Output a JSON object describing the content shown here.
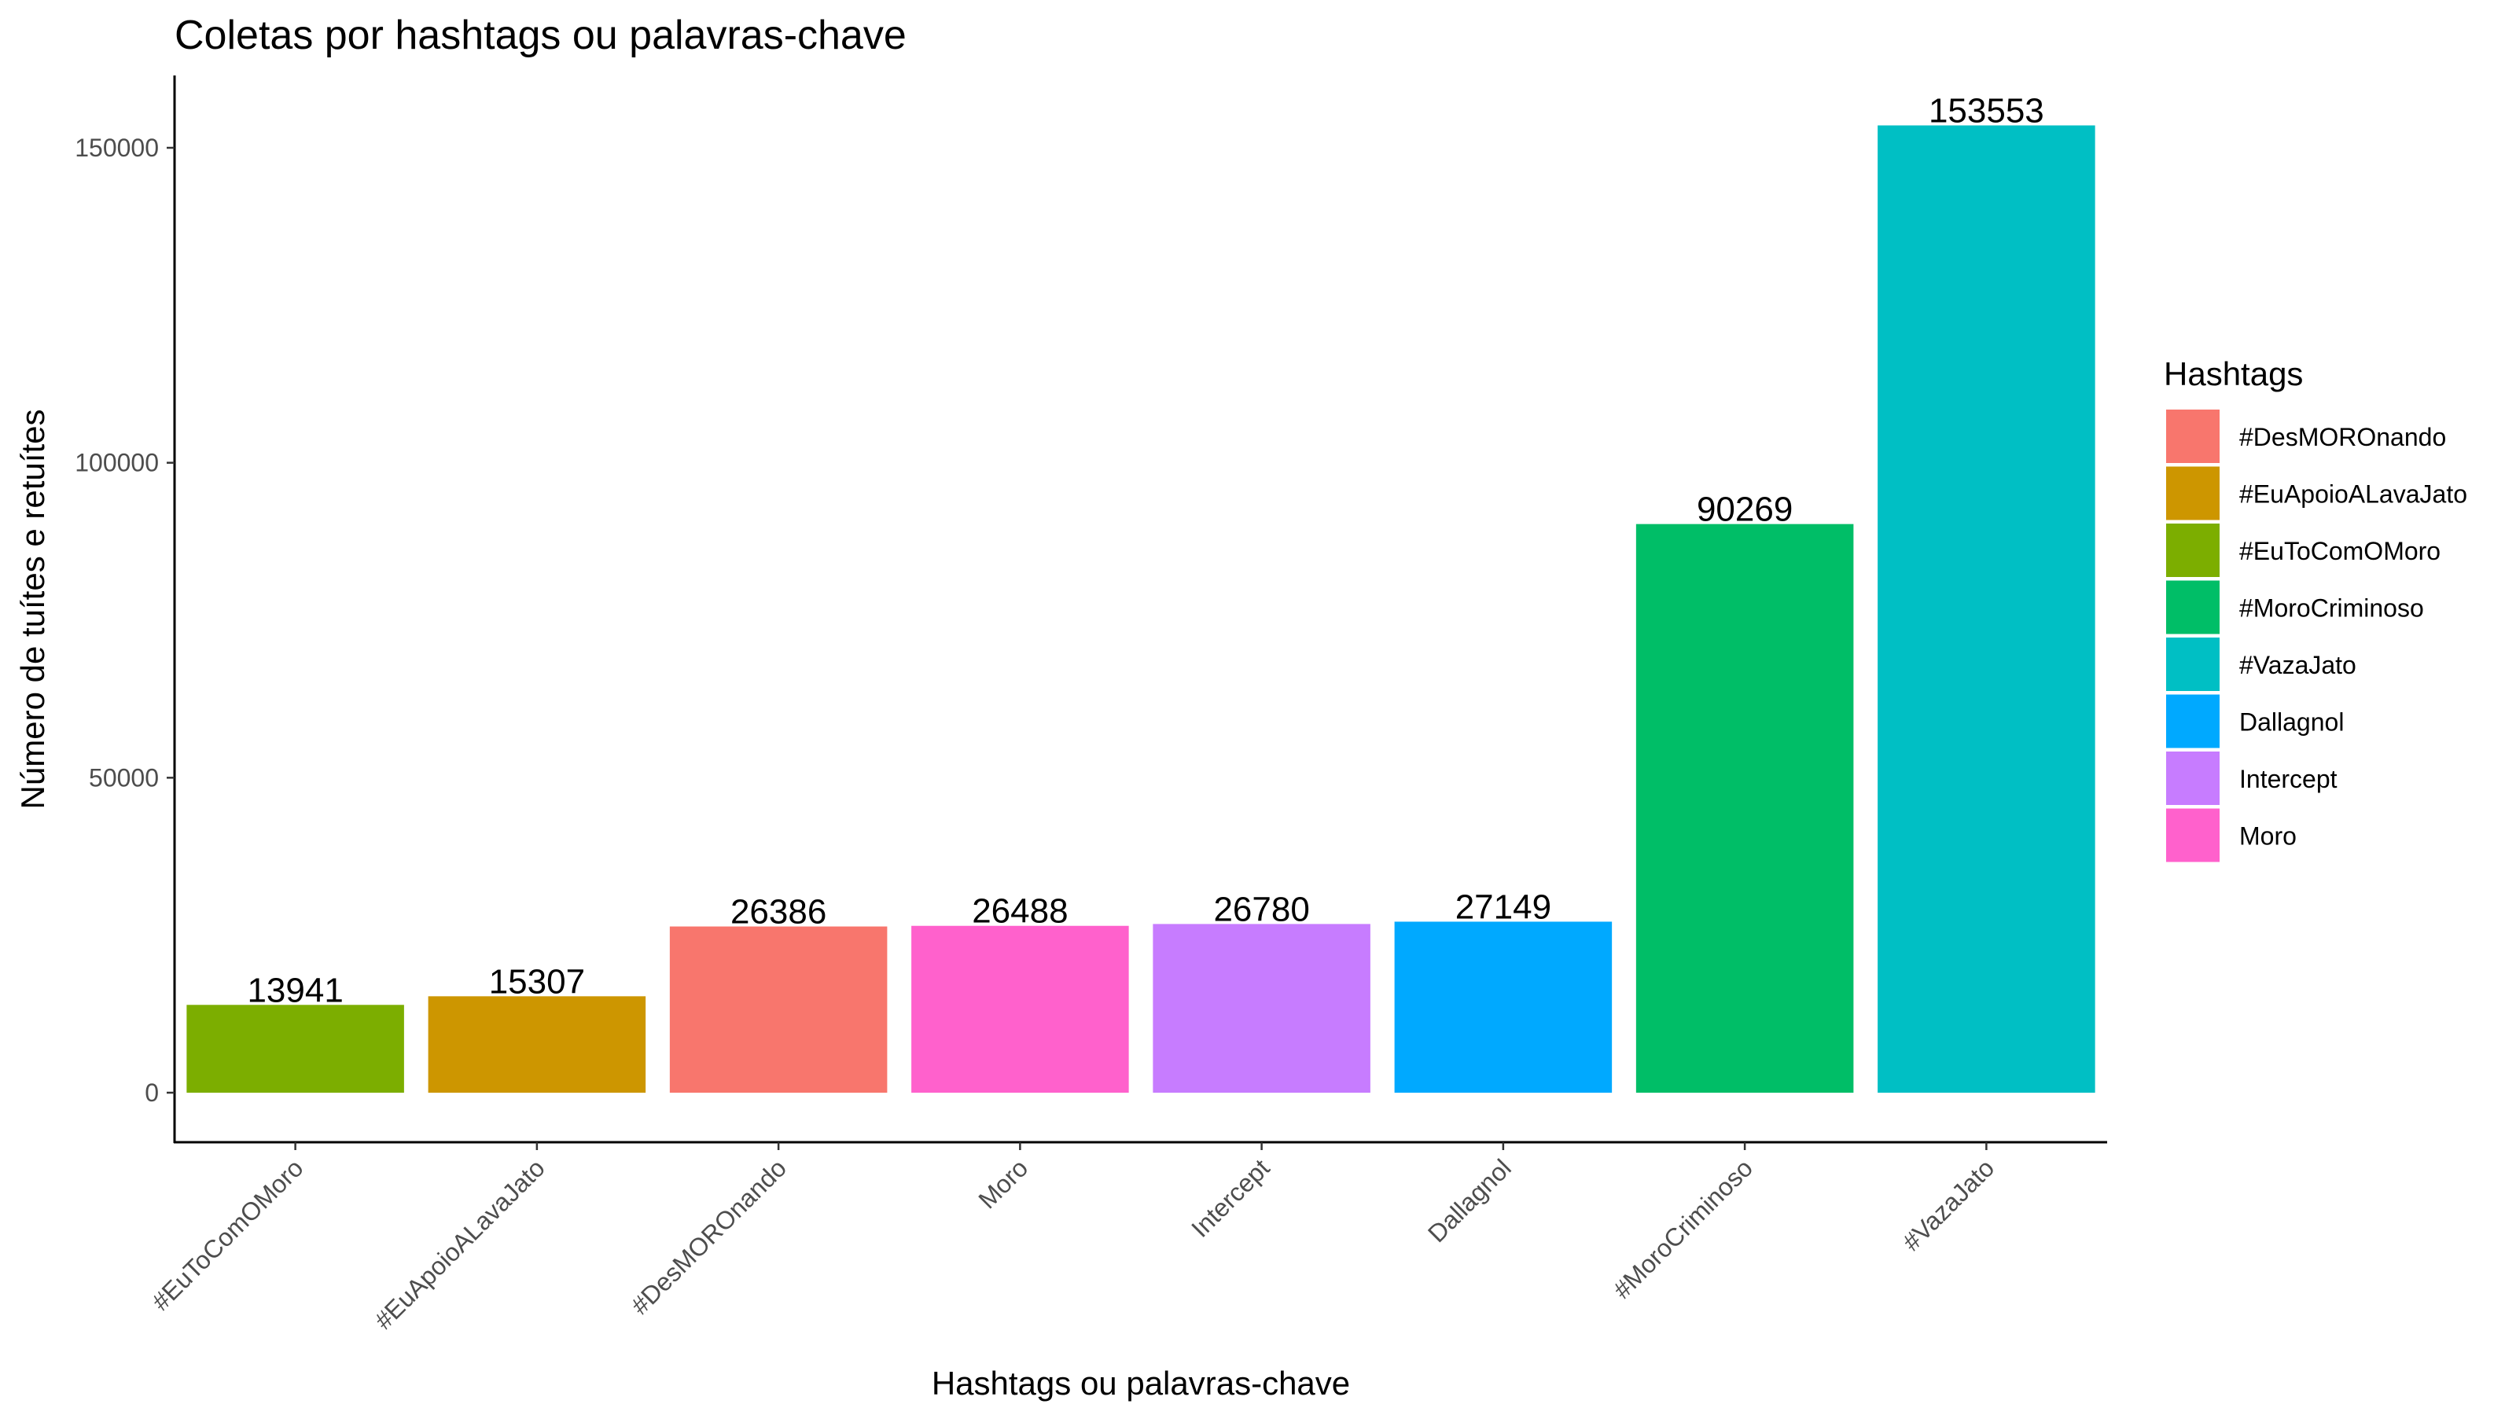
{
  "chart_data": {
    "type": "bar",
    "title": "Coletas por hashtags ou palavras-chave",
    "xlabel": "Hashtags ou palavras-chave",
    "ylabel": "Número de tuítes e retuítes",
    "ylim": [
      0,
      161000
    ],
    "yticks": [
      0,
      50000,
      100000,
      150000
    ],
    "ytick_labels": [
      "0",
      "50000",
      "100000",
      "150000"
    ],
    "grid": false,
    "legend_position": "right",
    "categories": [
      "#EuToComOMoro",
      "#EuApoioALavaJato",
      "#DesMOROnando",
      "Moro",
      "Intercept",
      "Dallagnol",
      "#MoroCriminoso",
      "#VazaJato"
    ],
    "values": [
      13941,
      15307,
      26386,
      26488,
      26780,
      27149,
      90269,
      153553
    ],
    "value_labels": [
      "13941",
      "15307",
      "26386",
      "26488",
      "26780",
      "27149",
      "90269",
      "153553"
    ],
    "bar_colors": [
      "#7CAE00",
      "#CD9600",
      "#F8766D",
      "#FF61CC",
      "#C77CFF",
      "#00A9FF",
      "#00BE67",
      "#00BFC4"
    ],
    "legend": {
      "title": "Hashtags",
      "entries": [
        {
          "label": "#DesMOROnando",
          "color": "#F8766D"
        },
        {
          "label": "#EuApoioALavaJato",
          "color": "#CD9600"
        },
        {
          "label": "#EuToComOMoro",
          "color": "#7CAE00"
        },
        {
          "label": "#MoroCriminoso",
          "color": "#00BE67"
        },
        {
          "label": "#VazaJato",
          "color": "#00BFC4"
        },
        {
          "label": "Dallagnol",
          "color": "#00A9FF"
        },
        {
          "label": "Intercept",
          "color": "#C77CFF"
        },
        {
          "label": "Moro",
          "color": "#FF61CC"
        }
      ]
    }
  }
}
